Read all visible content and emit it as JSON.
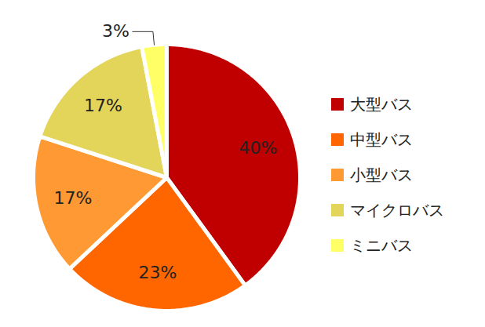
{
  "chart_data": {
    "type": "pie",
    "categories": [
      "大型バス",
      "中型バス",
      "小型バス",
      "マイクロバス",
      "ミニバス"
    ],
    "values": [
      40,
      23,
      17,
      17,
      3
    ],
    "value_labels": [
      "40%",
      "23%",
      "17%",
      "17%",
      "3%"
    ],
    "colors": [
      "#c00000",
      "#ff6600",
      "#ff9933",
      "#e3d55a",
      "#ffff66"
    ],
    "legend": "right",
    "data_labels": true
  }
}
